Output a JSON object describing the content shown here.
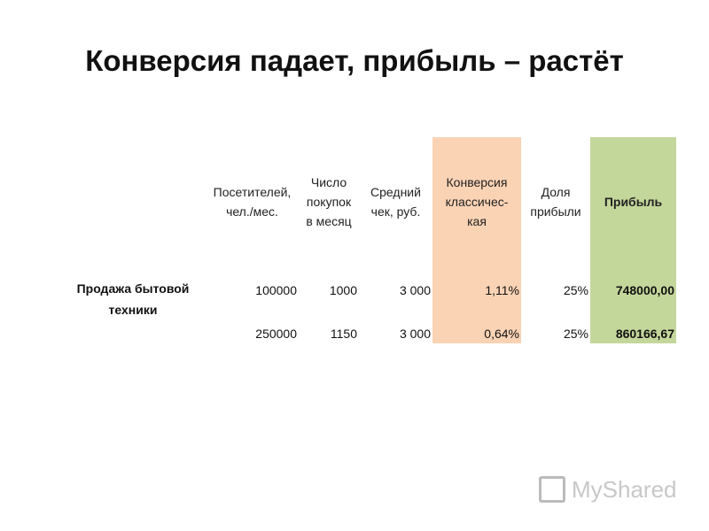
{
  "title": "Конверсия падает, прибыль – растёт",
  "table": {
    "columns": [
      "Посетителей, чел./мес.",
      "Число покупок в месяц",
      "Средний чек, руб.",
      "Конверсия классичес-кая",
      "Доля прибыли",
      "Прибыль"
    ],
    "rows": [
      {
        "label": "Продажа бытовой техники",
        "cells": [
          "100000",
          "1000",
          "3 000",
          "1,11%",
          "25%",
          "748000,00"
        ]
      },
      {
        "cells": [
          "250000",
          "1150",
          "3 000",
          "0,64%",
          "25%",
          "860166,67"
        ]
      }
    ]
  },
  "watermark": "MyShared"
}
